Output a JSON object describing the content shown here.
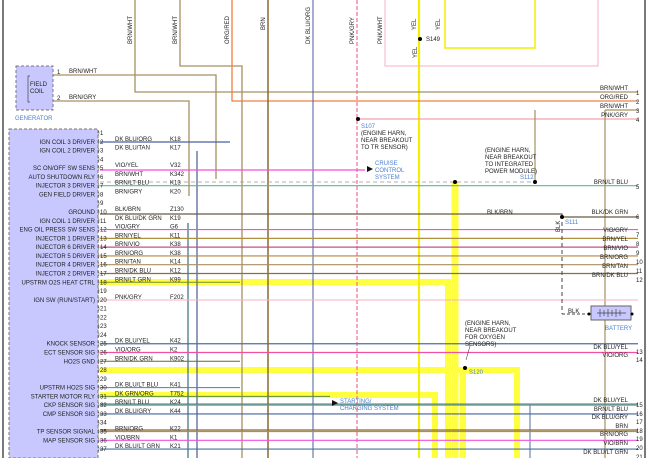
{
  "generator": {
    "label": "GENERATOR",
    "component": "FIELD COIL",
    "pins": [
      {
        "n": "1",
        "wire": "BRN/WHT"
      },
      {
        "n": "2",
        "wire": "BRN/GRY"
      }
    ]
  },
  "top_wires": [
    {
      "wire": "BRN/WHT",
      "color": "#a89060"
    },
    {
      "wire": "BRN/WHT",
      "color": "#a89060"
    },
    {
      "wire": "ORG/RED",
      "color": "#f08040"
    },
    {
      "wire": "BRN",
      "color": "#8a6a30"
    },
    {
      "wire": "DK BLU/ORG",
      "color": "#4a5fa0"
    },
    {
      "wire": "PNK/GRY",
      "color": "#f07090"
    },
    {
      "wire": "PNK/WHT",
      "color": "#f8b0c0"
    },
    {
      "wire": "YEL",
      "color": "#f0f000"
    },
    {
      "wire": "YEL",
      "color": "#f0f000"
    }
  ],
  "splices": {
    "s149": "S149",
    "s149_wire": "YEL",
    "s107": "S107",
    "s107_note": [
      "(ENGINE HARN,",
      "NEAR BREAKOUT",
      "TO TR SENSOR)"
    ],
    "s112": "S112",
    "s112_note": [
      "(ENGINE HARN,",
      "NEAR BREAKOUT",
      "TO INTEGRATED",
      "POWER MODULE)"
    ],
    "s111": "S111",
    "s111_wire": "BLK",
    "s120": "S120",
    "s120_note": [
      "(ENGINE HARN,",
      "NEAR BREAKOUT",
      "FOR OXYGEN",
      "SENSORS)"
    ],
    "mid_wire": "BLK/BRN"
  },
  "links": {
    "cruise": [
      "CRUISE",
      "CONTROL",
      "SYSTEM"
    ],
    "starting": [
      "STARTING/",
      "CHARGING SYSTEM"
    ]
  },
  "battery": {
    "label": "BATTERY",
    "wire": "BLK"
  },
  "pcm_pins": [
    {
      "n": "1",
      "func": "",
      "wire": "",
      "circuit": "",
      "color": ""
    },
    {
      "n": "2",
      "func": "IGN COIL 3 DRIVER",
      "wire": "DK BLU/ORG",
      "circuit": "K18",
      "color": "#4a5fa0"
    },
    {
      "n": "3",
      "func": "IGN COIL 2 DRIVER",
      "wire": "DK BLU/TAN",
      "circuit": "K17",
      "color": "#4a5a90"
    },
    {
      "n": "4",
      "func": "",
      "wire": "",
      "circuit": "",
      "color": ""
    },
    {
      "n": "5",
      "func": "SC ON/OFF SW SENS",
      "wire": "VIO/YEL",
      "circuit": "V32",
      "color": "#f050e0"
    },
    {
      "n": "6",
      "func": "AUTO SHUTDOWN RLY",
      "wire": "BRN/WHT",
      "circuit": "K342",
      "color": "#a89060"
    },
    {
      "n": "7",
      "func": "INJECTOR 3 DRIVER",
      "wire": "BRN/LT BLU",
      "circuit": "K13",
      "color": "#60b890",
      "to": "5"
    },
    {
      "n": "8",
      "func": "GEN FIELD DRIVER",
      "wire": "BRN/GRY",
      "circuit": "K20",
      "color": "#a89060"
    },
    {
      "n": "9",
      "func": "",
      "wire": "",
      "circuit": "",
      "color": ""
    },
    {
      "n": "10",
      "func": "GROUND",
      "wire": "BLK/BRN",
      "circuit": "Z130",
      "color": "#6b5a40"
    },
    {
      "n": "11",
      "func": "IGN COIL 1 DRIVER",
      "wire": "DK BLU/DK GRN",
      "circuit": "K19",
      "color": "#3a6a80"
    },
    {
      "n": "12",
      "func": "ENG OIL PRESS SW SENS",
      "wire": "VIO/GRY",
      "circuit": "G6",
      "color": "#f050e0",
      "to": "7"
    },
    {
      "n": "13",
      "func": "INJECTOR 1 DRIVER",
      "wire": "BRN/YEL",
      "circuit": "K11",
      "color": "#b09040",
      "to": "8"
    },
    {
      "n": "14",
      "func": "INJECTOR 6 DRIVER",
      "wire": "BRN/VIO",
      "circuit": "K38",
      "color": "#c05090",
      "to": "9"
    },
    {
      "n": "15",
      "func": "INJECTOR 5 DRIVER",
      "wire": "BRN/ORG",
      "circuit": "K38",
      "color": "#b08840",
      "to": "10"
    },
    {
      "n": "16",
      "func": "INJECTOR 4 DRIVER",
      "wire": "BRN/TAN",
      "circuit": "K14",
      "color": "#a89060",
      "to": "11"
    },
    {
      "n": "17",
      "func": "INJECTOR 2 DRIVER",
      "wire": "BRN/DK BLU",
      "circuit": "K12",
      "color": "#8a7040",
      "to": "12"
    },
    {
      "n": "18",
      "func": "UPSTRM O2S HEAT CTRL",
      "wire": "BRN/LT GRN",
      "circuit": "K99",
      "color": "#7a8a30",
      "hl": true
    },
    {
      "n": "19",
      "func": "",
      "wire": "",
      "circuit": "",
      "color": ""
    },
    {
      "n": "20",
      "func": "IGN SW (RUN/START)",
      "wire": "PNK/GRY",
      "circuit": "F202",
      "color": "#f8b0c0"
    },
    {
      "n": "21",
      "func": "",
      "wire": "",
      "circuit": "",
      "color": ""
    },
    {
      "n": "22",
      "func": "",
      "wire": "",
      "circuit": "",
      "color": ""
    },
    {
      "n": "23",
      "func": "",
      "wire": "",
      "circuit": "",
      "color": ""
    },
    {
      "n": "24",
      "func": "",
      "wire": "",
      "circuit": "",
      "color": ""
    },
    {
      "n": "25",
      "func": "KNOCK SENSOR",
      "wire": "DK BLU/YEL",
      "circuit": "K42",
      "color": "#4a70a0",
      "to": "13"
    },
    {
      "n": "26",
      "func": "ECT SENSOR SIG",
      "wire": "VIO/ORG",
      "circuit": "K2",
      "color": "#f050a0",
      "to": "14"
    },
    {
      "n": "27",
      "func": "HO2S GND",
      "wire": "BRN/DK GRN",
      "circuit": "K902",
      "color": "#6a6a30",
      "hl": true
    },
    {
      "n": "28",
      "func": "",
      "wire": "",
      "circuit": "",
      "color": ""
    },
    {
      "n": "29",
      "func": "",
      "wire": "",
      "circuit": "",
      "color": ""
    },
    {
      "n": "30",
      "func": "UPSTRM HO2S SIG",
      "wire": "DK BLU/LT BLU",
      "circuit": "K41",
      "color": "#4a80b0",
      "hl": true
    },
    {
      "n": "31",
      "func": "STARTER MOTOR RLY",
      "wire": "DK GRN/ORG",
      "circuit": "T752",
      "color": "#5a8a40"
    },
    {
      "n": "32",
      "func": "CKP SENSOR SIG",
      "wire": "BRN/LT BLU",
      "circuit": "K24",
      "color": "#60b060",
      "to": "16"
    },
    {
      "n": "33",
      "func": "CMP SENSOR SIG",
      "wire": "DK BLU/GRY",
      "circuit": "K44",
      "color": "#4a60a0",
      "to": "17"
    },
    {
      "n": "34",
      "func": "",
      "wire": "",
      "circuit": "",
      "color": ""
    },
    {
      "n": "35",
      "func": "TP SENSOR SIGNAL",
      "wire": "BRN/ORG",
      "circuit": "K22",
      "color": "#b09050",
      "to": "19"
    },
    {
      "n": "36",
      "func": "MAP SENSOR SIG",
      "wire": "VIO/BRN",
      "circuit": "K1",
      "color": "#f050e0",
      "to": "20"
    },
    {
      "n": "37",
      "func": "",
      "wire": "DK BLU/LT GRN",
      "circuit": "K21",
      "color": "#4a70a0",
      "to": "21"
    }
  ],
  "right_pins": [
    {
      "n": "1",
      "wire": "BRN/WHT",
      "color": "#a89060"
    },
    {
      "n": "2",
      "wire": "ORG/RED",
      "color": "#f08040"
    },
    {
      "n": "3",
      "wire": "BRN/WHT",
      "color": "#a89060"
    },
    {
      "n": "4",
      "wire": "PNK/GRY",
      "color": "#f8a0b0"
    },
    {
      "n": "5",
      "wire": "BRN/LT BLU",
      "color": "#60b890"
    },
    {
      "n": "6",
      "wire": "BLK/DK GRN",
      "color": "#3a6a40"
    },
    {
      "n": "7",
      "wire": "VIO/GRY",
      "color": "#f050e0"
    },
    {
      "n": "8",
      "wire": "BRN/YEL",
      "color": "#b09040"
    },
    {
      "n": "9",
      "wire": "BRN/VIO",
      "color": "#c05090"
    },
    {
      "n": "10",
      "wire": "BRN/ORG",
      "color": "#b08840"
    },
    {
      "n": "11",
      "wire": "BRN/TAN",
      "color": "#a89060"
    },
    {
      "n": "12",
      "wire": "BRN/DK BLU",
      "color": "#8a7040"
    },
    {
      "n": "13",
      "wire": "DK BLU/YEL",
      "color": "#4a70a0"
    },
    {
      "n": "14",
      "wire": "VIO/ORG",
      "color": "#f050a0"
    },
    {
      "n": "15",
      "wire": "DK BLU/YEL",
      "color": "#4a70a0"
    },
    {
      "n": "16",
      "wire": "BRN/LT BLU",
      "color": "#60b060"
    },
    {
      "n": "17",
      "wire": "DK BLU/GRY",
      "color": "#4a60a0"
    },
    {
      "n": "18",
      "wire": "BRN",
      "color": "#8a6a30"
    },
    {
      "n": "19",
      "wire": "BRN/ORG",
      "color": "#b09050"
    },
    {
      "n": "20",
      "wire": "VIO/BRN",
      "color": "#f050e0"
    },
    {
      "n": "21",
      "wire": "DK BLU/LT GRN",
      "color": "#4a70a0"
    }
  ],
  "colors": {
    "pcm_fill": "#c8c8ff",
    "highlight": "#ffff40",
    "link": "#4a7fd0"
  }
}
